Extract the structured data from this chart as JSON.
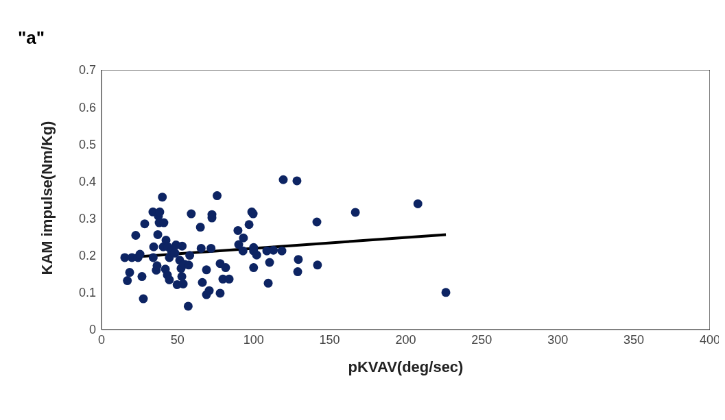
{
  "chart_data": {
    "type": "scatter",
    "title": "\"a\"",
    "xlabel": "pKVAV(deg/sec)",
    "ylabel": "KAM impulse(Nm/Kg)",
    "xlim": [
      0,
      400
    ],
    "xticks": [
      0,
      50,
      100,
      150,
      200,
      250,
      300,
      350,
      400
    ],
    "ylim": [
      0,
      0.7
    ],
    "yticks": [
      0,
      0.1,
      0.2,
      0.3,
      0.4,
      0.5,
      0.6,
      0.7
    ],
    "grid": false,
    "series": [
      {
        "marker": "circle",
        "color": "#0d2463",
        "x": [
          15.3,
          17,
          18.5,
          20,
          22.5,
          24,
          25.3,
          26.6,
          27.5,
          28.4,
          33.8,
          34,
          34.3,
          36,
          36.5,
          37,
          37.4,
          37.9,
          38.3,
          40,
          40.6,
          41,
          42,
          42.4,
          43.3,
          43.7,
          44.6,
          44.6,
          46,
          48.3,
          49,
          49.7,
          51.4,
          52.3,
          52.8,
          53.7,
          53,
          54.6,
          57,
          57.3,
          58,
          59,
          65,
          65.5,
          66.3,
          69,
          69,
          70.8,
          72.6,
          72.6,
          72,
          76,
          78,
          78,
          79.8,
          81.6,
          83.9,
          89.7,
          90.2,
          93,
          93.3,
          97,
          98.8,
          99.7,
          100,
          100,
          100,
          102,
          108.7,
          110.5,
          109.6,
          113,
          118.6,
          119.5,
          128.5,
          129.4,
          129,
          141.6,
          142,
          166.9,
          208,
          226.4
        ],
        "values": [
          0.194,
          0.132,
          0.154,
          0.194,
          0.254,
          0.194,
          0.203,
          0.143,
          0.083,
          0.285,
          0.317,
          0.194,
          0.223,
          0.16,
          0.172,
          0.256,
          0.306,
          0.288,
          0.317,
          0.357,
          0.223,
          0.288,
          0.163,
          0.241,
          0.147,
          0.223,
          0.194,
          0.134,
          0.212,
          0.206,
          0.228,
          0.121,
          0.187,
          0.165,
          0.143,
          0.123,
          0.225,
          0.176,
          0.063,
          0.174,
          0.2,
          0.312,
          0.276,
          0.219,
          0.127,
          0.161,
          0.094,
          0.105,
          0.31,
          0.301,
          0.219,
          0.361,
          0.098,
          0.178,
          0.136,
          0.167,
          0.136,
          0.267,
          0.229,
          0.212,
          0.247,
          0.283,
          0.317,
          0.312,
          0.221,
          0.167,
          0.212,
          0.201,
          0.212,
          0.181,
          0.125,
          0.214,
          0.212,
          0.404,
          0.401,
          0.189,
          0.156,
          0.29,
          0.174,
          0.316,
          0.339,
          0.1
        ]
      },
      {
        "type": "line",
        "marker": "none",
        "color": "#000000",
        "line_style": "solid",
        "x": [
          15.3,
          226.4
        ],
        "values": [
          0.194,
          0.256
        ]
      }
    ]
  }
}
